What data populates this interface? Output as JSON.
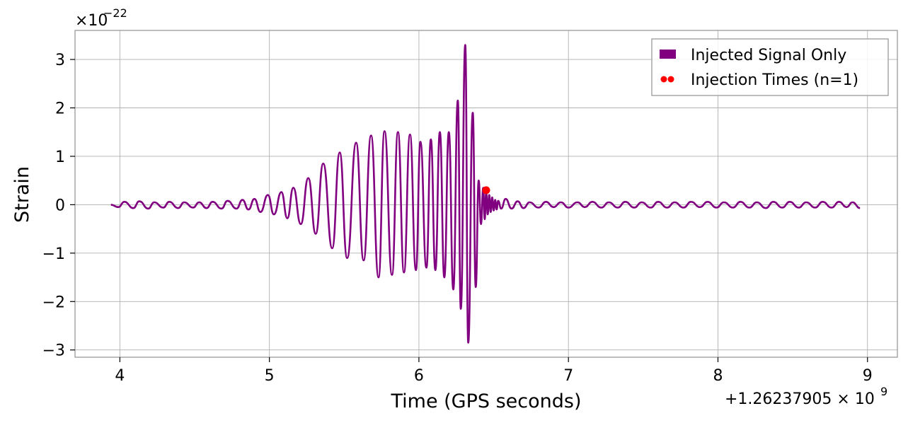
{
  "chart_data": {
    "type": "line",
    "xlabel": "Time (GPS seconds)",
    "ylabel": "Strain",
    "x_offset_text": "+1.26237905 × 10",
    "x_offset_exp": "9",
    "y_scale_text": "×10",
    "y_scale_exp": "−22",
    "xlim": [
      3.7,
      9.2
    ],
    "ylim": [
      -3.15,
      3.6
    ],
    "x_ticks": [
      4,
      5,
      6,
      7,
      8,
      9
    ],
    "x_tick_labels": [
      "4",
      "5",
      "6",
      "7",
      "8",
      "9"
    ],
    "y_ticks": [
      -3,
      -2,
      -1,
      0,
      1,
      2,
      3
    ],
    "y_tick_labels": [
      "−3",
      "−2",
      "−1",
      "0",
      "1",
      "2",
      "3"
    ],
    "grid": true,
    "legend_position": "top-right",
    "colors": {
      "signal": "#800080",
      "injection": "#ff0000"
    },
    "series": [
      {
        "name": "Injected Signal Only",
        "kind": "line",
        "color": "#800080",
        "x": [
          3.94,
          3.99,
          4.03,
          4.09,
          4.13,
          4.19,
          4.23,
          4.29,
          4.33,
          4.39,
          4.43,
          4.49,
          4.53,
          4.58,
          4.62,
          4.68,
          4.72,
          4.78,
          4.82,
          4.86,
          4.9,
          4.94,
          4.99,
          5.03,
          5.08,
          5.12,
          5.16,
          5.21,
          5.26,
          5.31,
          5.36,
          5.42,
          5.47,
          5.52,
          5.58,
          5.63,
          5.68,
          5.73,
          5.77,
          5.82,
          5.86,
          5.9,
          5.94,
          5.98,
          6.01,
          6.05,
          6.08,
          6.11,
          6.14,
          6.17,
          6.2,
          6.23,
          6.26,
          6.28,
          6.31,
          6.33,
          6.36,
          6.38,
          6.4,
          6.415,
          6.43,
          6.44,
          6.45,
          6.46,
          6.47,
          6.48,
          6.49,
          6.5,
          6.51,
          6.52,
          6.53,
          6.55,
          6.58,
          6.62,
          6.66,
          6.7,
          6.74,
          6.8,
          6.85,
          6.9,
          6.95,
          7.0,
          7.06,
          7.11,
          7.16,
          7.22,
          7.27,
          7.33,
          7.38,
          7.44,
          7.49,
          7.55,
          7.6,
          7.66,
          7.71,
          7.77,
          7.82,
          7.88,
          7.93,
          7.99,
          8.04,
          8.1,
          8.15,
          8.21,
          8.26,
          8.32,
          8.37,
          8.43,
          8.48,
          8.54,
          8.59,
          8.65,
          8.7,
          8.76,
          8.81,
          8.86,
          8.9,
          8.95
        ],
        "y": [
          0.0,
          -0.05,
          0.06,
          -0.07,
          0.07,
          -0.08,
          0.05,
          -0.06,
          0.06,
          -0.07,
          0.05,
          -0.06,
          0.05,
          -0.07,
          0.06,
          -0.08,
          0.08,
          -0.08,
          0.1,
          -0.1,
          0.12,
          -0.15,
          0.2,
          -0.2,
          0.26,
          -0.28,
          0.35,
          -0.4,
          0.55,
          -0.6,
          0.85,
          -0.9,
          1.08,
          -1.1,
          1.28,
          -1.15,
          1.43,
          -1.5,
          1.52,
          -1.45,
          1.5,
          -1.4,
          1.45,
          -1.35,
          1.3,
          -1.3,
          1.35,
          -1.35,
          1.5,
          -1.5,
          1.5,
          -1.75,
          2.15,
          -2.15,
          3.3,
          -2.85,
          1.9,
          -1.7,
          0.5,
          -0.4,
          0.35,
          -0.3,
          0.25,
          -0.2,
          0.2,
          -0.15,
          0.15,
          -0.12,
          0.1,
          -0.1,
          0.08,
          -0.08,
          0.12,
          -0.08,
          0.07,
          -0.07,
          0.05,
          -0.06,
          0.06,
          -0.05,
          0.05,
          -0.06,
          0.05,
          -0.05,
          0.06,
          -0.06,
          0.05,
          -0.06,
          0.06,
          -0.06,
          0.05,
          -0.06,
          0.06,
          -0.06,
          0.05,
          -0.06,
          0.06,
          -0.05,
          0.06,
          -0.06,
          0.05,
          -0.06,
          0.06,
          -0.06,
          0.05,
          -0.07,
          0.06,
          -0.06,
          0.06,
          -0.06,
          0.05,
          -0.06,
          0.06,
          -0.06,
          0.06,
          -0.05,
          0.05,
          -0.07
        ]
      },
      {
        "name": "Injection Times (n=1)",
        "kind": "scatter",
        "color": "#ff0000",
        "x": [
          6.45
        ],
        "y": [
          0.3
        ]
      }
    ]
  }
}
